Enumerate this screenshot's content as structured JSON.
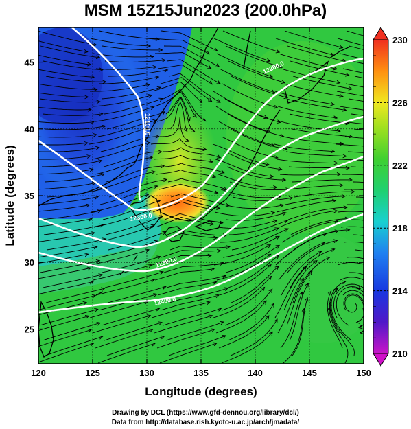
{
  "title": "MSM 15Z15Jun2023 (200.0hPa)",
  "xlabel": "Longitude (degrees)",
  "ylabel": "Latitude  (degrees)",
  "credits": [
    "Drawing by DCL (https://www.gfd-dennou.org/library/dcl/)",
    "Data from http://database.rish.kyoto-u.ac.jp/arch/jmadata/"
  ],
  "x_ticks": [
    120,
    125,
    130,
    135,
    140,
    145,
    150
  ],
  "y_ticks": [
    25,
    30,
    35,
    40,
    45
  ],
  "xlim": [
    120,
    150
  ],
  "ylim": [
    22.4,
    47.6
  ],
  "colorbar": {
    "ticks": [
      "230",
      "226",
      "222",
      "218",
      "214",
      "210"
    ],
    "min": 210,
    "max": 230
  },
  "contours": [
    {
      "label": "12100.0"
    },
    {
      "label": "12200.0"
    },
    {
      "label": "12300.0"
    },
    {
      "label": "12300.0"
    },
    {
      "label": "12400.0"
    }
  ],
  "colors": {
    "field_green": "#30c040",
    "field_blue": "#1c3ad8",
    "field_orange": "#ff7a10",
    "coast": "#000000",
    "contour": "#ffffff"
  }
}
